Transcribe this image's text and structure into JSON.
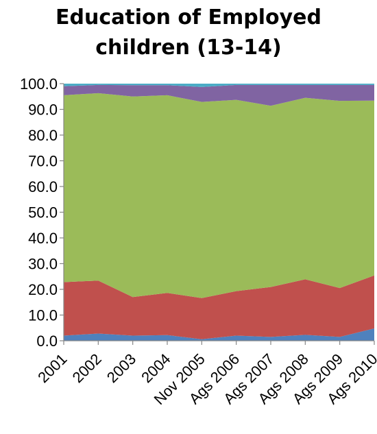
{
  "chart_data": {
    "type": "area",
    "stacked": true,
    "title_lines": [
      "Education of Employed",
      "children (13-14)"
    ],
    "categories": [
      "2001",
      "2002",
      "2003",
      "2004",
      "Nov 2005",
      "Ags 2006",
      "Ags 2007",
      "Ags 2008",
      "Ags 2009",
      "Ags 2010"
    ],
    "ylim": [
      0,
      100
    ],
    "yticks": [
      "0.0",
      "10.0",
      "20.0",
      "30.0",
      "40.0",
      "50.0",
      "60.0",
      "70.0",
      "80.0",
      "90.0",
      "100.0"
    ],
    "grid": false,
    "legend": "none",
    "series": [
      {
        "color": "#4F81BD",
        "values": [
          2.0,
          2.8,
          2.0,
          2.2,
          0.6,
          2.0,
          1.5,
          2.3,
          1.5,
          4.8
        ]
      },
      {
        "color": "#C0504D",
        "values": [
          20.8,
          20.6,
          15.0,
          16.4,
          16.0,
          17.3,
          19.4,
          21.6,
          19.0,
          20.6
        ]
      },
      {
        "color": "#9BBB59",
        "values": [
          72.7,
          72.9,
          78.0,
          76.9,
          76.3,
          74.4,
          70.5,
          70.6,
          72.8,
          68.0
        ]
      },
      {
        "color": "#8064A2",
        "values": [
          3.5,
          3.2,
          4.4,
          3.9,
          5.8,
          5.8,
          8.1,
          5.0,
          6.2,
          6.1
        ]
      },
      {
        "color": "#4BACC6",
        "values": [
          1.0,
          0.5,
          0.6,
          0.6,
          1.3,
          0.5,
          0.5,
          0.5,
          0.5,
          0.5
        ]
      }
    ]
  }
}
